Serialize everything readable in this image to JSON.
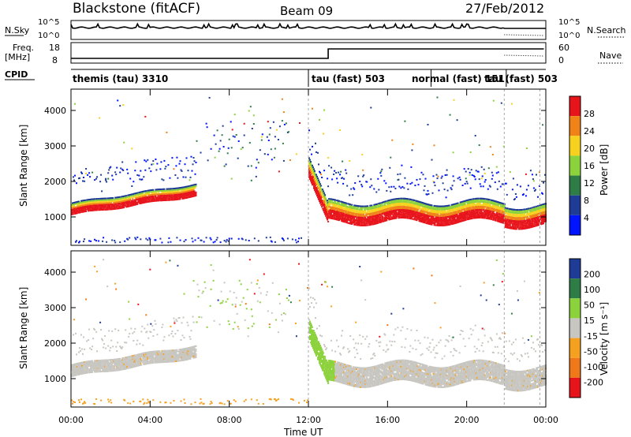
{
  "header": {
    "title": "Blackstone (fitACF)",
    "beam": "Beam 09",
    "date": "27/Feb/2012"
  },
  "top_panels": {
    "nsky_label": "N.Sky",
    "nsky_ticks": [
      "10^5",
      "10^0"
    ],
    "nsearch_label": "N.Search",
    "nsearch_ticks": [
      "10^5",
      "10^0"
    ],
    "freq_label": "Freq.",
    "freq_unit": "[MHz]",
    "freq_ticks": [
      "18",
      "8"
    ],
    "nave_label": "Nave",
    "nave_ticks": [
      "60",
      "0"
    ],
    "cpid_label": "CPID",
    "cpid_segments": [
      {
        "label": "themis (tau) 3310",
        "start_hour": 0
      },
      {
        "label": "tau (fast) 503",
        "start_hour": 12
      },
      {
        "label": "normal (fast) 151",
        "start_hour": 18.2
      },
      {
        "label": "tau (fast) 503",
        "start_hour": 22
      }
    ]
  },
  "chart_data": [
    {
      "type": "heatmap",
      "title": "",
      "xlabel": "",
      "ylabel": "Slant Range [km]",
      "xlim": [
        0,
        24
      ],
      "ylim": [
        200,
        4600
      ],
      "yticks": [
        "1000",
        "2000",
        "3000",
        "4000"
      ],
      "colorbar": {
        "label": "Power [dB]",
        "ticks": [
          "28",
          "24",
          "20",
          "16",
          "12",
          "8",
          "4"
        ],
        "colors": [
          "#e8141c",
          "#f08218",
          "#f6d21e",
          "#8cd23c",
          "#2e7d46",
          "#1e3c96",
          "#0014ff"
        ]
      }
    },
    {
      "type": "heatmap",
      "title": "",
      "xlabel": "Time UT",
      "ylabel": "Slant Range [km]",
      "xlim": [
        0,
        24
      ],
      "ylim": [
        200,
        4600
      ],
      "yticks": [
        "1000",
        "2000",
        "3000",
        "4000"
      ],
      "xticks": [
        "00:00",
        "04:00",
        "08:00",
        "12:00",
        "16:00",
        "20:00",
        "00:00"
      ],
      "colorbar": {
        "label": "Velocity [m s⁻¹]",
        "ticks": [
          "200",
          "100",
          "50",
          "15",
          "-15",
          "-50",
          "-100",
          "-200"
        ],
        "colors": [
          "#1e3c96",
          "#2e7d46",
          "#8cd23c",
          "#c8c6c0",
          "#f6a020",
          "#f07818",
          "#e8141c"
        ]
      }
    }
  ]
}
